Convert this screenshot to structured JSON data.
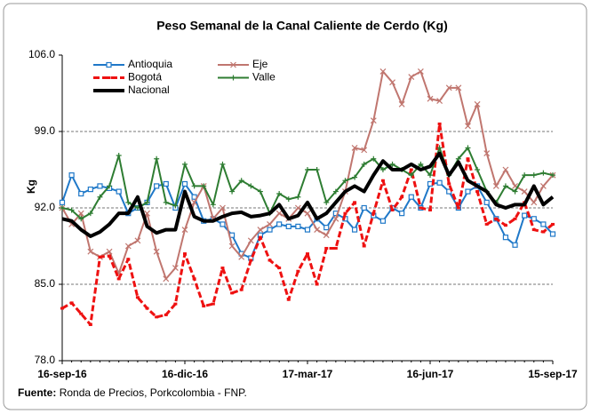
{
  "chart_data": {
    "type": "line",
    "title": "Peso Semanal de la Canal Caliente de Cerdo (Kg)",
    "y_label": "Kg",
    "source_label": "Fuente:",
    "source": "Ronda de Precios, Porkcolombia  - FNP.",
    "categories": [
      "16-sep-16",
      null,
      null,
      null,
      null,
      null,
      null,
      null,
      null,
      null,
      null,
      null,
      null,
      "16-dic-16",
      null,
      null,
      null,
      null,
      null,
      null,
      null,
      null,
      null,
      null,
      null,
      null,
      "17-mar-17",
      null,
      null,
      null,
      null,
      null,
      null,
      null,
      null,
      null,
      null,
      null,
      null,
      "16-jun-17",
      null,
      null,
      null,
      null,
      null,
      null,
      null,
      null,
      null,
      null,
      null,
      null,
      "15-sep-17"
    ],
    "ylim": [
      78,
      106
    ],
    "yticks": [
      {
        "value": 78,
        "label": "78.0"
      },
      {
        "value": 85,
        "label": "85.0"
      },
      {
        "value": 92,
        "label": "92.0"
      },
      {
        "value": 99,
        "label": "99.0"
      },
      {
        "value": 106,
        "label": "106.0"
      }
    ],
    "grid": true,
    "legend": "top-left",
    "series": [
      {
        "name": "Antioquia",
        "color": "#1f78c8",
        "marker": "square",
        "width": 2,
        "values": [
          92.5,
          95,
          93.3,
          93.7,
          94,
          93.8,
          93.5,
          91.5,
          92,
          92.5,
          94,
          94.2,
          92,
          94.2,
          93,
          90.8,
          91,
          90.5,
          89.5,
          87.8,
          87.4,
          89.5,
          90,
          90.5,
          90.3,
          90.3,
          90,
          91,
          90.2,
          91.5,
          91,
          90,
          92,
          91.3,
          90.8,
          92,
          91.5,
          93,
          92,
          94.2,
          94.3,
          93.5,
          92,
          93.5,
          94,
          92.5,
          91,
          89.3,
          88.6,
          91.3,
          91,
          90.5,
          89.6
        ]
      },
      {
        "name": "Eje",
        "color": "#c0766f",
        "marker": "x",
        "width": 2,
        "values": [
          92,
          90.5,
          91.5,
          88,
          87.5,
          88,
          86,
          88.5,
          89,
          91.5,
          88,
          85.5,
          86.5,
          90,
          92.5,
          94,
          91,
          92,
          88.5,
          87.5,
          89,
          90,
          90.5,
          91.5,
          91,
          92,
          91.5,
          90,
          89.5,
          91,
          93.5,
          97.5,
          97.3,
          100,
          104.5,
          103.5,
          101.5,
          104,
          104.5,
          102,
          101.8,
          103,
          103,
          99.5,
          101.5,
          97,
          94,
          95.5,
          94,
          93.5,
          92.5,
          94,
          95
        ]
      },
      {
        "name": "Bogotá",
        "color": "#ee1111",
        "marker": "dash",
        "dash": true,
        "width": 3,
        "values": [
          82.8,
          83.3,
          82.3,
          81.3,
          87.5,
          87.6,
          85.5,
          87.3,
          83.8,
          82.8,
          82,
          82.2,
          83.2,
          87.8,
          85.5,
          83,
          83.2,
          86.5,
          84.2,
          84.5,
          87.2,
          89.3,
          87.2,
          86.5,
          83.6,
          86.2,
          87.8,
          85,
          88.3,
          88.3,
          91.5,
          92.5,
          88.5,
          91.5,
          94.5,
          91.8,
          93,
          95.5,
          92,
          91.8,
          99.7,
          94.2,
          92,
          96.5,
          93.5,
          90.5,
          91,
          90.4,
          91,
          92.5,
          90,
          89.8,
          90.5
        ]
      },
      {
        "name": "Valle",
        "color": "#2e7d32",
        "marker": "plus",
        "width": 2,
        "values": [
          92,
          91.8,
          91,
          91.5,
          93,
          94,
          96.8,
          92.5,
          92,
          92.5,
          96.5,
          92.5,
          92.2,
          96,
          94,
          94,
          92.3,
          96,
          93.5,
          94.5,
          94,
          93.5,
          91.5,
          93.3,
          92.8,
          93,
          95.5,
          95.5,
          92.5,
          93.5,
          94.5,
          94.8,
          96,
          96.5,
          95.5,
          96,
          95.5,
          95,
          96,
          95,
          97.5,
          95,
          96.5,
          97.5,
          95.5,
          93.5,
          92.5,
          94,
          93.5,
          95,
          95,
          95.2,
          95
        ]
      },
      {
        "name": "Nacional",
        "color": "#000000",
        "marker": "none",
        "width": 4,
        "values": [
          91,
          90.8,
          90,
          89.4,
          89.8,
          90.5,
          91.5,
          91.5,
          93,
          90.3,
          89.7,
          90,
          90,
          93.5,
          91.2,
          90.8,
          90.8,
          91.2,
          91.5,
          91.6,
          91.2,
          91.3,
          91.5,
          92.3,
          91,
          91.3,
          92.5,
          91,
          91.5,
          92.5,
          93.5,
          94,
          93.5,
          95,
          96.3,
          95.5,
          95.5,
          96,
          95.5,
          95.8,
          97,
          95,
          96.2,
          94.5,
          94,
          93.5,
          92.3,
          92,
          92.3,
          92.3,
          94,
          92.3,
          93
        ]
      }
    ]
  }
}
